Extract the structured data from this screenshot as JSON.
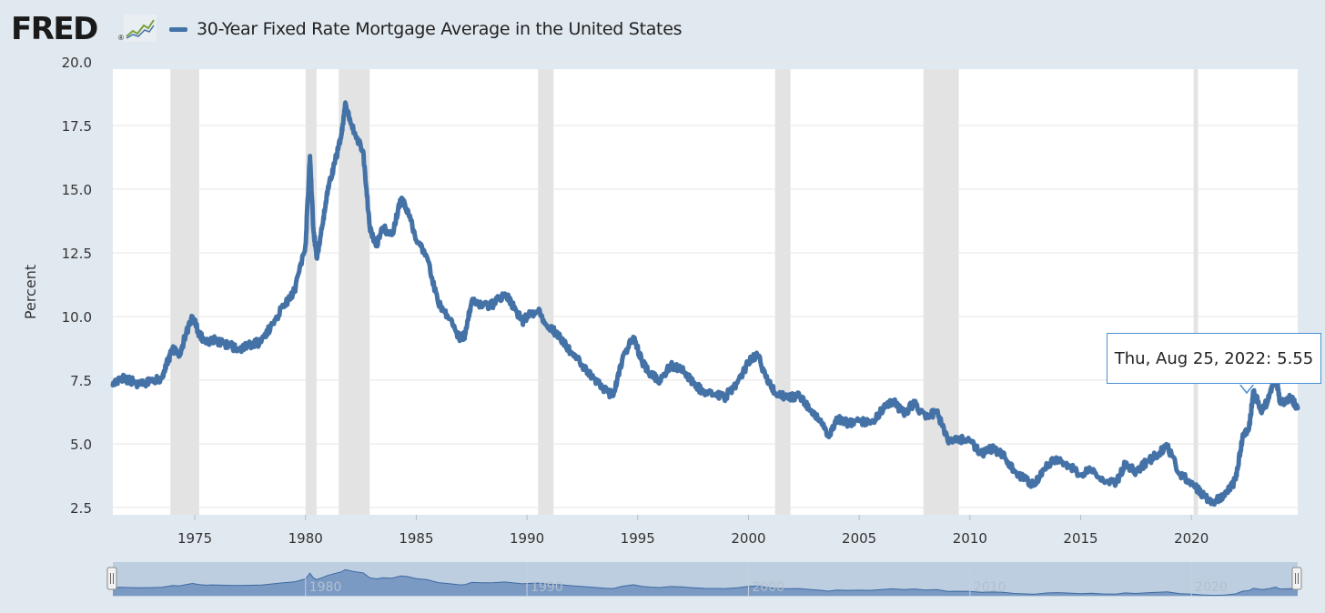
{
  "header": {
    "logo_text": "FRED",
    "logo_reg": "®",
    "series_title": "30-Year Fixed Rate Mortgage Average in the United States"
  },
  "colors": {
    "series": "#4472a6",
    "recession": "#e3e3e3",
    "background": "#e1e9f0",
    "tooltip_border": "#4a8fd6"
  },
  "tooltip": {
    "date": "Thu, Aug 25, 2022",
    "value": "5.55"
  },
  "chart_data": {
    "type": "line",
    "title": "30-Year Fixed Rate Mortgage Average in the United States",
    "xlabel": "",
    "ylabel": "Percent",
    "xlim": [
      1971.3,
      2024.8
    ],
    "ylim": [
      2.5,
      20.0
    ],
    "yticks": [
      "20.0",
      "17.5",
      "15.0",
      "12.5",
      "10.0",
      "7.5",
      "5.0",
      "2.5"
    ],
    "xticks": [
      "1975",
      "1980",
      "1985",
      "1990",
      "1995",
      "2000",
      "2005",
      "2010",
      "2015",
      "2020"
    ],
    "grid": true,
    "legend": "top-left",
    "recessions": [
      [
        1973.9,
        1975.2
      ],
      [
        1980.0,
        1980.5
      ],
      [
        1981.5,
        1982.9
      ],
      [
        1990.5,
        1991.2
      ],
      [
        2001.2,
        2001.9
      ],
      [
        2007.9,
        2009.5
      ],
      [
        2020.1,
        2020.3
      ]
    ],
    "series": [
      {
        "name": "30-Year Fixed Rate Mortgage Average in the United States",
        "x": [
          1971.3,
          1971.6,
          1972.0,
          1972.5,
          1973.0,
          1973.5,
          1973.8,
          1974.0,
          1974.3,
          1974.6,
          1974.9,
          1975.2,
          1975.5,
          1975.8,
          1976.2,
          1976.6,
          1977.0,
          1977.5,
          1978.0,
          1978.5,
          1979.0,
          1979.5,
          1980.0,
          1980.2,
          1980.35,
          1980.5,
          1980.8,
          1981.0,
          1981.3,
          1981.6,
          1981.8,
          1982.2,
          1982.6,
          1982.9,
          1983.2,
          1983.5,
          1983.9,
          1984.3,
          1984.6,
          1985.0,
          1985.5,
          1986.0,
          1986.5,
          1987.0,
          1987.2,
          1987.5,
          1988.0,
          1988.5,
          1989.0,
          1989.3,
          1989.8,
          1990.0,
          1990.5,
          1991.0,
          1991.5,
          1992.0,
          1992.5,
          1993.0,
          1993.5,
          1993.9,
          1994.3,
          1994.8,
          1995.2,
          1995.6,
          1996.0,
          1996.5,
          1997.0,
          1997.5,
          1998.0,
          1998.5,
          1998.9,
          1999.5,
          2000.0,
          2000.4,
          2000.8,
          2001.2,
          2001.8,
          2002.3,
          2002.8,
          2003.3,
          2003.6,
          2004.0,
          2004.5,
          2005.0,
          2005.5,
          2006.0,
          2006.5,
          2007.0,
          2007.5,
          2008.0,
          2008.5,
          2009.0,
          2009.5,
          2010.0,
          2010.5,
          2011.0,
          2011.5,
          2012.0,
          2012.5,
          2012.9,
          2013.5,
          2014.0,
          2014.5,
          2015.0,
          2015.5,
          2016.0,
          2016.6,
          2017.0,
          2017.5,
          2018.0,
          2018.5,
          2018.9,
          2019.5,
          2020.0,
          2020.5,
          2021.0,
          2021.5,
          2022.0,
          2022.3,
          2022.6,
          2022.8,
          2023.2,
          2023.5,
          2023.8,
          2024.0,
          2024.5,
          2024.8
        ],
        "y": [
          7.3,
          7.6,
          7.5,
          7.35,
          7.45,
          7.6,
          8.3,
          8.7,
          8.5,
          9.3,
          10.0,
          9.3,
          8.95,
          9.1,
          8.95,
          8.85,
          8.7,
          8.9,
          9.0,
          9.7,
          10.4,
          11.0,
          12.8,
          16.3,
          13.5,
          12.3,
          13.8,
          14.9,
          16.0,
          17.0,
          18.4,
          17.2,
          16.5,
          13.5,
          12.8,
          13.5,
          13.2,
          14.6,
          14.2,
          13.0,
          12.3,
          10.5,
          9.9,
          9.1,
          9.3,
          10.6,
          10.4,
          10.5,
          10.9,
          10.5,
          9.8,
          10.0,
          10.2,
          9.6,
          9.2,
          8.6,
          8.1,
          7.6,
          7.1,
          6.9,
          8.3,
          9.2,
          8.2,
          7.7,
          7.5,
          8.1,
          7.9,
          7.4,
          7.0,
          6.95,
          6.8,
          7.4,
          8.2,
          8.5,
          7.6,
          7.0,
          6.8,
          6.9,
          6.3,
          5.8,
          5.3,
          6.0,
          5.8,
          5.9,
          5.8,
          6.3,
          6.7,
          6.2,
          6.6,
          6.0,
          6.3,
          5.1,
          5.2,
          5.1,
          4.6,
          4.8,
          4.6,
          3.9,
          3.6,
          3.4,
          4.2,
          4.4,
          4.1,
          3.8,
          4.0,
          3.6,
          3.45,
          4.2,
          3.9,
          4.3,
          4.6,
          4.9,
          3.8,
          3.5,
          3.0,
          2.7,
          2.95,
          3.6,
          5.2,
          5.6,
          7.0,
          6.3,
          6.8,
          7.8,
          6.6,
          6.8,
          6.4
        ]
      }
    ],
    "navigator_xticks": [
      "1980",
      "1990",
      "2000",
      "2010",
      "2020"
    ]
  }
}
